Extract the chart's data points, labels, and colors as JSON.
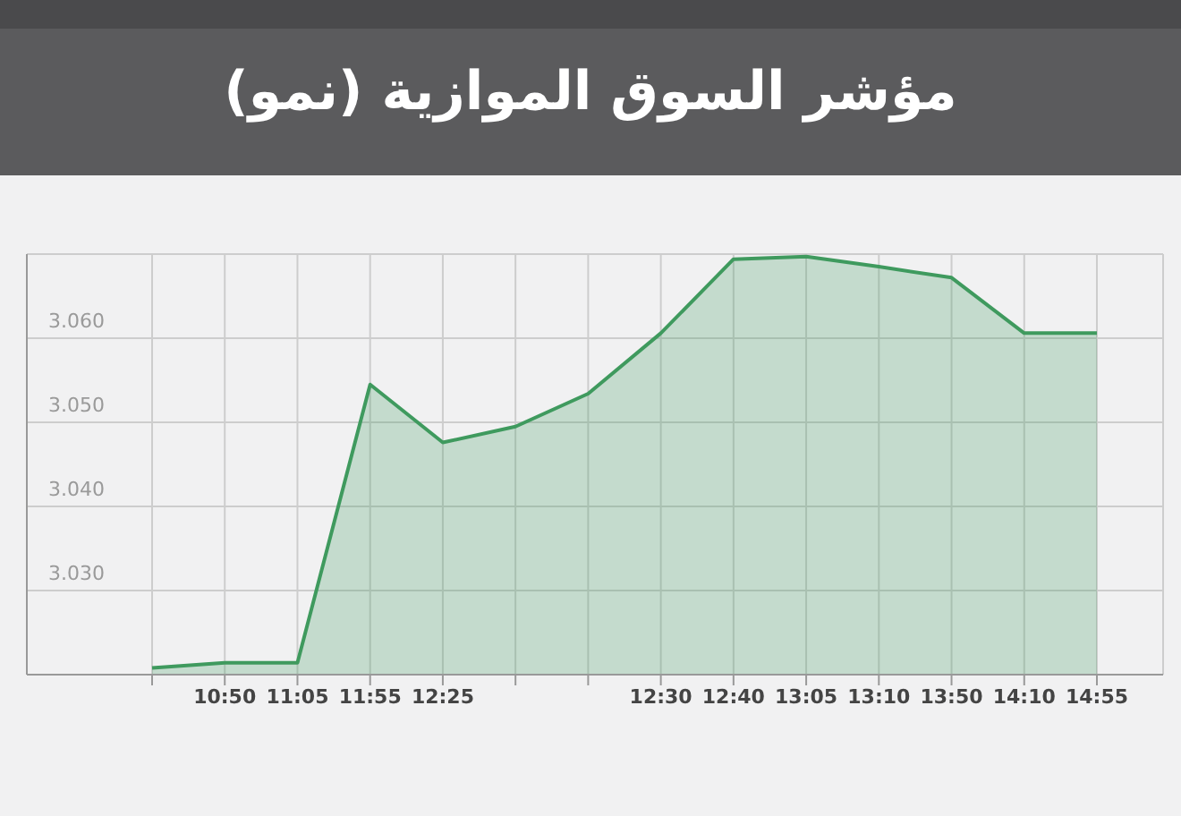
{
  "chart_data": {
    "type": "area",
    "title": "مؤشر السوق الموازية (نمو)",
    "categories": [
      null,
      "10:50",
      "11:05",
      "11:55",
      "12:25",
      null,
      null,
      "12:30",
      "12:40",
      "13:05",
      "13:10",
      "13:50",
      "14:10",
      "14:55"
    ],
    "series": [
      {
        "color": "#3f9a5e",
        "values": [
          3020.8,
          3021.4,
          3021.4,
          3054.5,
          3047.6,
          3049.5,
          3053.4,
          3060.6,
          3069.4,
          3069.7,
          3068.5,
          3067.2,
          3060.6,
          3060.6
        ]
      }
    ],
    "ylim": [
      3020,
      3070
    ],
    "yticks": [
      {
        "value": 3030,
        "label": "3.030"
      },
      {
        "value": 3040,
        "label": "3.040"
      },
      {
        "value": 3050,
        "label": "3.050"
      },
      {
        "value": 3060,
        "label": "3.060"
      },
      {
        "value": 3070,
        "label": null
      }
    ],
    "grid": true
  }
}
